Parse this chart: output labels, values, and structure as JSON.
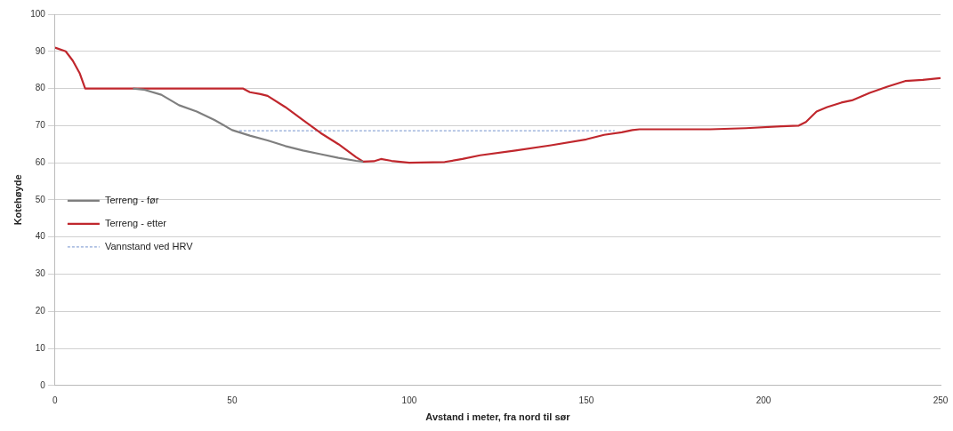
{
  "chart_data": {
    "type": "line",
    "xlabel": "Avstand i meter, fra nord til sør",
    "ylabel": "Kotehøyde",
    "xlim": [
      0,
      250
    ],
    "xticks": [
      0,
      50,
      100,
      150,
      200,
      250
    ],
    "ylim": [
      0,
      100
    ],
    "yticks": [
      0,
      10,
      20,
      30,
      40,
      50,
      60,
      70,
      80,
      90,
      100
    ],
    "grid": "y",
    "legend": "left",
    "marker": "none",
    "series": [
      {
        "name": "Terreng - før",
        "color": "#7f7f7f",
        "x": [
          22,
          25,
          30,
          35,
          40,
          45,
          50,
          55,
          60,
          65,
          70,
          75,
          80,
          85,
          87
        ],
        "values": [
          80,
          79.7,
          78.3,
          75.5,
          73.8,
          71.5,
          68.8,
          67.3,
          66,
          64.5,
          63.3,
          62.3,
          61.3,
          60.5,
          60.3
        ]
      },
      {
        "name": "Terreng - etter",
        "color": "#c0272d",
        "x": [
          0,
          3,
          5,
          7,
          8.5,
          20,
          53,
          55,
          58,
          60,
          65,
          70,
          75,
          80,
          85,
          87,
          90,
          92,
          95,
          100,
          110,
          115,
          120,
          130,
          140,
          150,
          155,
          160,
          163,
          165,
          185,
          195,
          205,
          210,
          212,
          215,
          218,
          222,
          225,
          230,
          235,
          240,
          245,
          250
        ],
        "values": [
          91,
          90,
          87.5,
          84,
          80,
          80,
          80,
          79,
          78.5,
          78,
          75,
          71.5,
          68,
          65,
          61.5,
          60.3,
          60.4,
          61,
          60.5,
          60,
          60.2,
          61,
          62,
          63.3,
          64.7,
          66.3,
          67.5,
          68.2,
          68.8,
          69,
          69,
          69.3,
          69.8,
          70,
          71,
          73.8,
          75,
          76.2,
          76.8,
          78.8,
          80.5,
          82,
          82.3,
          82.8
        ]
      },
      {
        "name": "Vannstand ved HRV",
        "color": "#8fa8d8",
        "line_style": "dashed",
        "x": [
          52,
          158
        ],
        "values": [
          68.6,
          68.6
        ]
      }
    ]
  }
}
